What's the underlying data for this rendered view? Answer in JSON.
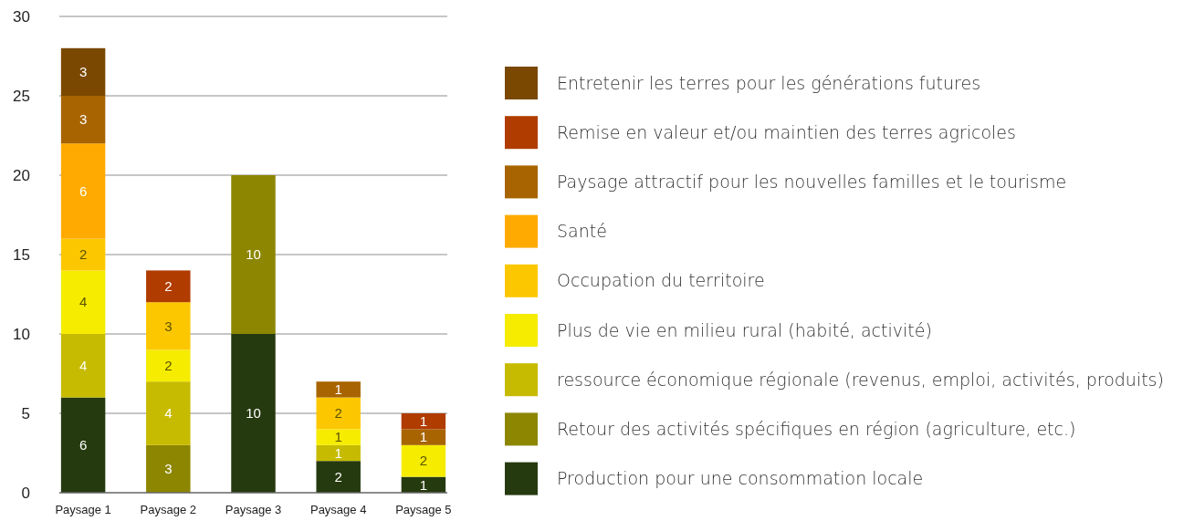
{
  "chart_data": {
    "type": "bar",
    "stacked": true,
    "categories": [
      "Paysage 1",
      "Paysage 2",
      "Paysage 3",
      "Paysage 4",
      "Paysage 5"
    ],
    "series": [
      {
        "name": "Production pour une consommation locale",
        "color": "#263a0f",
        "values": [
          6,
          null,
          10,
          2,
          1
        ]
      },
      {
        "name": "Retour des activités spécifiques en région (agriculture, etc.)",
        "color": "#8d8600",
        "values": [
          null,
          3,
          10,
          null,
          null
        ]
      },
      {
        "name": "ressource économique régionale (revenus, emploi, activités, produits)",
        "color": "#c6bb00",
        "values": [
          4,
          4,
          null,
          1,
          null
        ]
      },
      {
        "name": "Plus de vie en milieu rural (habité, activité)",
        "color": "#f5ec00",
        "values": [
          4,
          2,
          null,
          1,
          2
        ]
      },
      {
        "name": "Occupation du territoire",
        "color": "#fdc700",
        "values": [
          2,
          3,
          null,
          2,
          null
        ]
      },
      {
        "name": "Santé",
        "color": "#ffaa00",
        "values": [
          6,
          null,
          null,
          null,
          null
        ]
      },
      {
        "name": "Paysage attractif pour les nouvelles familles et le tourisme",
        "color": "#a86400",
        "values": [
          3,
          null,
          null,
          1,
          1
        ]
      },
      {
        "name": "Remise en valeur et/ou maintien des terres agricoles",
        "color": "#b03c00",
        "values": [
          null,
          2,
          null,
          null,
          1
        ]
      },
      {
        "name": "Entretenir les terres pour les générations futures",
        "color": "#7a4800",
        "values": [
          3,
          null,
          null,
          null,
          null
        ]
      }
    ],
    "ylim": [
      0,
      30
    ],
    "yticks": [
      0,
      5,
      10,
      15,
      20,
      25,
      30
    ],
    "grid": "y",
    "legend": "right",
    "data_labels": true
  }
}
